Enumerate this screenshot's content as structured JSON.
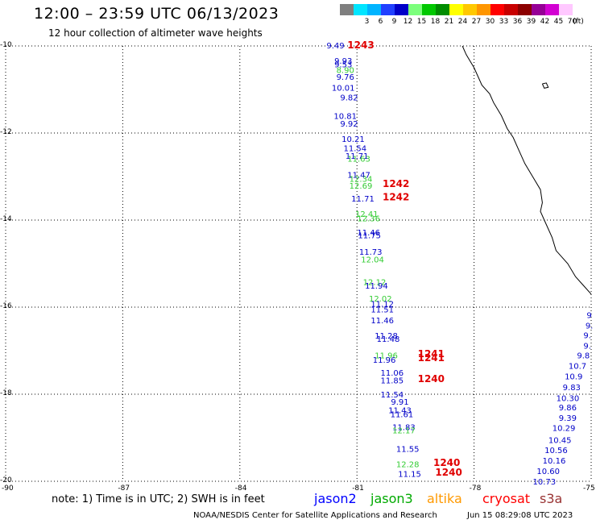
{
  "header": {
    "title": "12:00 – 23:59 UTC 06/13/2023",
    "subtitle": "12 hour collection of altimeter wave heights"
  },
  "color_scale": {
    "unit": "(ft)",
    "items": [
      {
        "label": "",
        "color": "#7f7f7f"
      },
      {
        "label": "3",
        "color": "#00e5ff"
      },
      {
        "label": "6",
        "color": "#00b4ff"
      },
      {
        "label": "9",
        "color": "#2040ff"
      },
      {
        "label": "12",
        "color": "#0000c8"
      },
      {
        "label": "15",
        "color": "#7cff7c"
      },
      {
        "label": "18",
        "color": "#00c800"
      },
      {
        "label": "21",
        "color": "#008c00"
      },
      {
        "label": "24",
        "color": "#ffff00"
      },
      {
        "label": "27",
        "color": "#ffc800"
      },
      {
        "label": "30",
        "color": "#ff9600"
      },
      {
        "label": "33",
        "color": "#ff0000"
      },
      {
        "label": "36",
        "color": "#c80000"
      },
      {
        "label": "39",
        "color": "#8c0000"
      },
      {
        "label": "42",
        "color": "#960096"
      },
      {
        "label": "45",
        "color": "#d200d2"
      },
      {
        "label": "70",
        "color": "#ffc8ff"
      }
    ]
  },
  "map": {
    "y_ticks": [
      "-10",
      "-12",
      "-14",
      "-16",
      "-18",
      "-20"
    ],
    "x_ticks": [
      "-90",
      "-87",
      "-84",
      "-81",
      "-78",
      "-75"
    ],
    "lat_range": [
      -20,
      -10
    ],
    "lon_range": [
      -90,
      -75
    ],
    "colors": {
      "jason2": "#0000c8",
      "jason3": "#33cc33",
      "cryosat": "#e00000",
      "grid": "#000000",
      "coast": "#000000"
    },
    "coastline": [
      [
        -78.3,
        -10.0
      ],
      [
        -78.2,
        -10.2
      ],
      [
        -78.0,
        -10.5
      ],
      [
        -77.8,
        -10.9
      ],
      [
        -77.6,
        -11.1
      ],
      [
        -77.5,
        -11.3
      ],
      [
        -77.3,
        -11.6
      ],
      [
        -77.15,
        -11.9
      ],
      [
        -77.0,
        -12.1
      ],
      [
        -76.85,
        -12.4
      ],
      [
        -76.7,
        -12.7
      ],
      [
        -76.5,
        -13.0
      ],
      [
        -76.3,
        -13.3
      ],
      [
        -76.25,
        -13.6
      ],
      [
        -76.3,
        -13.8
      ],
      [
        -76.2,
        -14.0
      ],
      [
        -76.0,
        -14.4
      ],
      [
        -75.9,
        -14.7
      ],
      [
        -75.6,
        -15.0
      ],
      [
        -75.4,
        -15.3
      ],
      [
        -75.2,
        -15.5
      ],
      [
        -75.0,
        -15.7
      ]
    ],
    "island": [
      [
        -76.25,
        -10.87
      ],
      [
        -76.15,
        -10.85
      ],
      [
        -76.1,
        -10.95
      ],
      [
        -76.2,
        -10.97
      ],
      [
        -76.25,
        -10.87
      ]
    ],
    "track_west": [
      {
        "text": "9.49",
        "lat": -9.98,
        "lon": -81.55,
        "sat": "jason2"
      },
      {
        "text": "9.93",
        "lat": -10.33,
        "lon": -81.35,
        "sat": "jason2"
      },
      {
        "text": "9.53",
        "lat": -10.42,
        "lon": -81.35,
        "sat": "jason2"
      },
      {
        "text": "8.90",
        "lat": -10.55,
        "lon": -81.3,
        "sat": "jason3"
      },
      {
        "text": "9.76",
        "lat": -10.7,
        "lon": -81.3,
        "sat": "jason2"
      },
      {
        "text": "10.01",
        "lat": -10.95,
        "lon": -81.35,
        "sat": "jason2"
      },
      {
        "text": "9.82",
        "lat": -11.18,
        "lon": -81.2,
        "sat": "jason2"
      },
      {
        "text": "10.81",
        "lat": -11.6,
        "lon": -81.3,
        "sat": "jason2"
      },
      {
        "text": "9.92",
        "lat": -11.78,
        "lon": -81.2,
        "sat": "jason2"
      },
      {
        "text": "10.21",
        "lat": -12.13,
        "lon": -81.1,
        "sat": "jason2"
      },
      {
        "text": "11.54",
        "lat": -12.34,
        "lon": -81.05,
        "sat": "jason2"
      },
      {
        "text": "11.71",
        "lat": -12.52,
        "lon": -81.0,
        "sat": "jason2"
      },
      {
        "text": "11.63",
        "lat": -12.58,
        "lon": -80.95,
        "sat": "jason3"
      },
      {
        "text": "11.47",
        "lat": -12.95,
        "lon": -80.95,
        "sat": "jason2"
      },
      {
        "text": "12.34",
        "lat": -13.05,
        "lon": -80.9,
        "sat": "jason3"
      },
      {
        "text": "12.69",
        "lat": -13.2,
        "lon": -80.9,
        "sat": "jason3"
      },
      {
        "text": "11.71",
        "lat": -13.5,
        "lon": -80.85,
        "sat": "jason2"
      },
      {
        "text": "12.41",
        "lat": -13.85,
        "lon": -80.75,
        "sat": "jason3"
      },
      {
        "text": "12.36",
        "lat": -13.95,
        "lon": -80.7,
        "sat": "jason3"
      },
      {
        "text": "11.46",
        "lat": -14.28,
        "lon": -80.7,
        "sat": "jason2"
      },
      {
        "text": "11.75",
        "lat": -14.34,
        "lon": -80.68,
        "sat": "jason2"
      },
      {
        "text": "11.73",
        "lat": -14.72,
        "lon": -80.65,
        "sat": "jason2"
      },
      {
        "text": "12.04",
        "lat": -14.9,
        "lon": -80.6,
        "sat": "jason3"
      },
      {
        "text": "12.12",
        "lat": -15.42,
        "lon": -80.55,
        "sat": "jason3"
      },
      {
        "text": "11.94",
        "lat": -15.5,
        "lon": -80.5,
        "sat": "jason2"
      },
      {
        "text": "12.02",
        "lat": -15.8,
        "lon": -80.4,
        "sat": "jason3"
      },
      {
        "text": "11.12",
        "lat": -15.92,
        "lon": -80.35,
        "sat": "jason2"
      },
      {
        "text": "11.51",
        "lat": -16.05,
        "lon": -80.35,
        "sat": "jason2"
      },
      {
        "text": "11.46",
        "lat": -16.3,
        "lon": -80.35,
        "sat": "jason2"
      },
      {
        "text": "11.28",
        "lat": -16.65,
        "lon": -80.25,
        "sat": "jason2"
      },
      {
        "text": "11.48",
        "lat": -16.72,
        "lon": -80.2,
        "sat": "jason2"
      },
      {
        "text": "11.96",
        "lat": -17.1,
        "lon": -80.25,
        "sat": "jason3"
      },
      {
        "text": "11.96",
        "lat": -17.2,
        "lon": -80.3,
        "sat": "jason2"
      },
      {
        "text": "11.06",
        "lat": -17.5,
        "lon": -80.1,
        "sat": "jason2"
      },
      {
        "text": "11.85",
        "lat": -17.68,
        "lon": -80.1,
        "sat": "jason2"
      },
      {
        "text": "11.54",
        "lat": -18.0,
        "lon": -80.1,
        "sat": "jason2"
      },
      {
        "text": "9.91",
        "lat": -18.17,
        "lon": -79.9,
        "sat": "jason2"
      },
      {
        "text": "11.43",
        "lat": -18.36,
        "lon": -79.9,
        "sat": "jason2"
      },
      {
        "text": "11.61",
        "lat": -18.45,
        "lon": -79.85,
        "sat": "jason2"
      },
      {
        "text": "11.83",
        "lat": -18.75,
        "lon": -79.8,
        "sat": "jason2"
      },
      {
        "text": "12.17",
        "lat": -18.82,
        "lon": -79.8,
        "sat": "jason3"
      },
      {
        "text": "11.55",
        "lat": -19.25,
        "lon": -79.7,
        "sat": "jason2"
      },
      {
        "text": "12.28",
        "lat": -19.6,
        "lon": -79.7,
        "sat": "jason3"
      },
      {
        "text": "11.15",
        "lat": -19.82,
        "lon": -79.65,
        "sat": "jason2"
      }
    ],
    "track_east": [
      {
        "text": "9",
        "lat": -16.18,
        "lon": -75.05,
        "sat": "jason2"
      },
      {
        "text": "9.",
        "lat": -16.42,
        "lon": -75.05,
        "sat": "jason2"
      },
      {
        "text": "9.",
        "lat": -16.64,
        "lon": -75.1,
        "sat": "jason2"
      },
      {
        "text": "9.",
        "lat": -16.88,
        "lon": -75.1,
        "sat": "jason2"
      },
      {
        "text": "9.8",
        "lat": -17.1,
        "lon": -75.2,
        "sat": "jason2"
      },
      {
        "text": "10.7",
        "lat": -17.34,
        "lon": -75.35,
        "sat": "jason2"
      },
      {
        "text": "10.9",
        "lat": -17.58,
        "lon": -75.45,
        "sat": "jason2"
      },
      {
        "text": "9.83",
        "lat": -17.83,
        "lon": -75.5,
        "sat": "jason2"
      },
      {
        "text": "10.30",
        "lat": -18.08,
        "lon": -75.6,
        "sat": "jason2"
      },
      {
        "text": "9.86",
        "lat": -18.3,
        "lon": -75.6,
        "sat": "jason2"
      },
      {
        "text": "9.39",
        "lat": -18.54,
        "lon": -75.6,
        "sat": "jason2"
      },
      {
        "text": "10.29",
        "lat": -18.77,
        "lon": -75.7,
        "sat": "jason2"
      },
      {
        "text": "10.45",
        "lat": -19.05,
        "lon": -75.8,
        "sat": "jason2"
      },
      {
        "text": "10.56",
        "lat": -19.28,
        "lon": -75.9,
        "sat": "jason2"
      },
      {
        "text": "10.16",
        "lat": -19.52,
        "lon": -75.95,
        "sat": "jason2"
      },
      {
        "text": "10.60",
        "lat": -19.76,
        "lon": -76.1,
        "sat": "jason2"
      },
      {
        "text": "10.73",
        "lat": -20.0,
        "lon": -76.2,
        "sat": "jason2"
      }
    ],
    "pass_labels": [
      {
        "text": "1243",
        "lat": -9.98,
        "lon": -80.9
      },
      {
        "text": "1242",
        "lat": -13.17,
        "lon": -80.0
      },
      {
        "text": "1242",
        "lat": -13.47,
        "lon": -80.0
      },
      {
        "text": "1241",
        "lat": -17.07,
        "lon": -79.1
      },
      {
        "text": "1241",
        "lat": -17.17,
        "lon": -79.1
      },
      {
        "text": "1240",
        "lat": -17.65,
        "lon": -79.1
      },
      {
        "text": "1240",
        "lat": -19.57,
        "lon": -78.7
      },
      {
        "text": "1240",
        "lat": -19.8,
        "lon": -78.65
      }
    ]
  },
  "footer": {
    "note": "note: 1) Time is in UTC; 2) SWH is in feet",
    "legend": [
      {
        "label": "jason2",
        "color": "#0000ff"
      },
      {
        "label": "jason3",
        "color": "#00aa00"
      },
      {
        "label": "altika",
        "color": "#ff9900"
      },
      {
        "label": "cryosat",
        "color": "#ff0000"
      },
      {
        "label": "s3a",
        "color": "#993333"
      }
    ],
    "credit": "NOAA/NESDIS Center for Satellite Applications and Research",
    "timestamp": "Jun 15 08:29:08 UTC 2023"
  }
}
